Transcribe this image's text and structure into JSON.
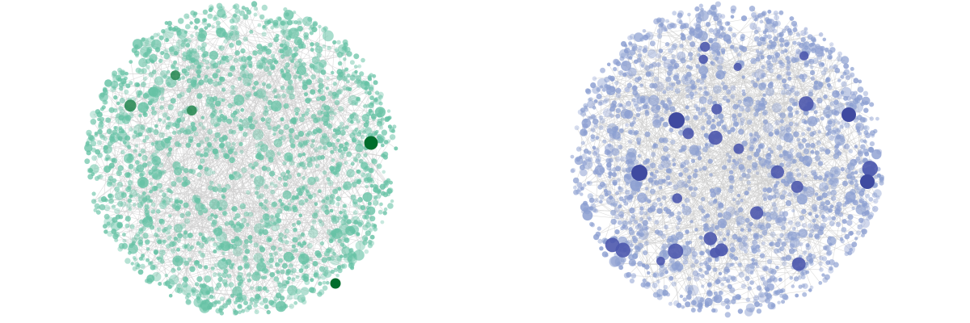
{
  "graphs": [
    {
      "node_color": "#66c2a5",
      "hub_color": "#2e8b57",
      "top_color": "#006d2c"
    },
    {
      "node_color": "#8c9fd1",
      "hub_color": "#4c58ad",
      "top_color": "#3f4aa0"
    }
  ]
}
